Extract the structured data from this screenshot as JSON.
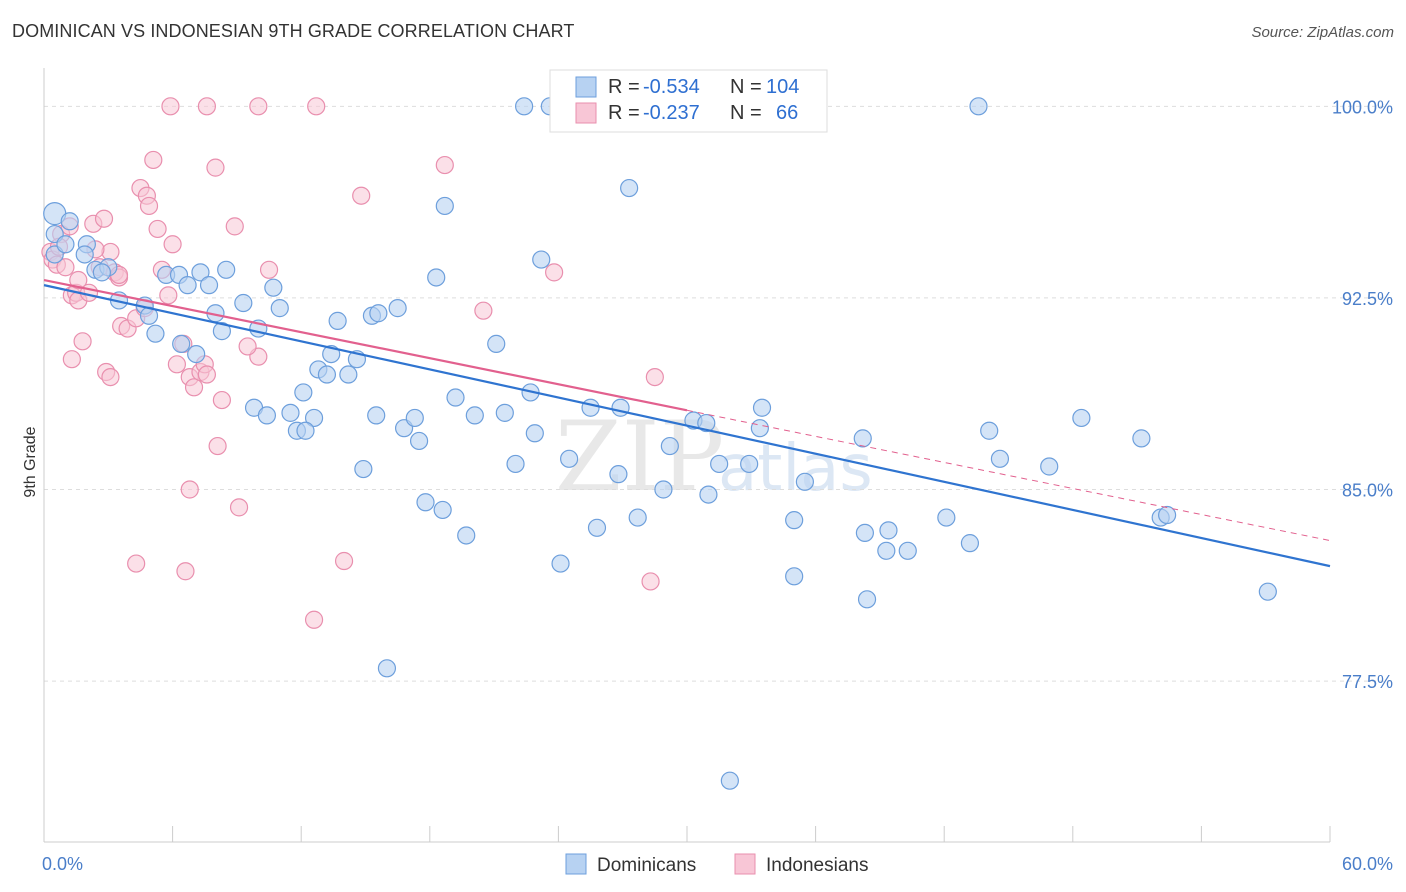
{
  "header": {
    "title": "DOMINICAN VS INDONESIAN 9TH GRADE CORRELATION CHART",
    "source": "Source: ZipAtlas.com"
  },
  "watermark": {
    "zip": "ZIP",
    "atlas": "atlas"
  },
  "colors": {
    "blue_fill": "#b7d2f2",
    "blue_stroke": "#6d9fdc",
    "blue_line": "#2f74d0",
    "pink_fill": "#f8c6d6",
    "pink_stroke": "#e98fae",
    "pink_line": "#e2608e",
    "grid": "#dddddd",
    "tick_label": "#4a7ec9"
  },
  "legend_top": {
    "rows": [
      {
        "r_label": "R =",
        "r_value": "-0.534",
        "n_label": "N =",
        "n_value": "104"
      },
      {
        "r_label": "R =",
        "r_value": "-0.237",
        "n_label": "N =",
        "n_value": "66"
      }
    ]
  },
  "legend_bottom": {
    "items": [
      {
        "label": "Dominicans"
      },
      {
        "label": "Indonesians"
      }
    ]
  },
  "chart_data": {
    "type": "scatter",
    "title": "DOMINICAN VS INDONESIAN 9TH GRADE CORRELATION CHART",
    "xlabel": "",
    "ylabel": "9th Grade",
    "xlim": [
      0,
      60
    ],
    "ylim": [
      71.2,
      101.5
    ],
    "x_tick_labels": [
      "0.0%",
      "60.0%"
    ],
    "y_ticks": [
      100.0,
      92.5,
      85.0,
      77.5
    ],
    "y_tick_labels": [
      "100.0%",
      "92.5%",
      "85.0%",
      "77.5%"
    ],
    "grid": true,
    "legend_position": "top-center",
    "series": [
      {
        "name": "Dominicans",
        "R": -0.534,
        "N": 104,
        "trend": {
          "x": [
            0,
            60
          ],
          "y": [
            93.0,
            82.0
          ]
        },
        "points": [
          [
            0.5,
            95.8
          ],
          [
            0.5,
            95.0
          ],
          [
            0.5,
            94.2
          ],
          [
            1.2,
            95.5
          ],
          [
            1.0,
            94.6
          ],
          [
            2.0,
            94.6
          ],
          [
            1.9,
            94.2
          ],
          [
            2.4,
            93.6
          ],
          [
            3.0,
            93.7
          ],
          [
            2.7,
            93.5
          ],
          [
            3.5,
            92.4
          ],
          [
            4.7,
            92.2
          ],
          [
            5.7,
            93.4
          ],
          [
            6.3,
            93.4
          ],
          [
            4.9,
            91.8
          ],
          [
            5.2,
            91.1
          ],
          [
            6.7,
            93.0
          ],
          [
            7.3,
            93.5
          ],
          [
            7.7,
            93.0
          ],
          [
            8.5,
            93.6
          ],
          [
            9.3,
            92.3
          ],
          [
            10.0,
            91.3
          ],
          [
            10.7,
            92.9
          ],
          [
            11.0,
            92.1
          ],
          [
            8.0,
            91.9
          ],
          [
            8.3,
            91.2
          ],
          [
            6.4,
            90.7
          ],
          [
            7.1,
            90.3
          ],
          [
            9.8,
            88.2
          ],
          [
            10.4,
            87.9
          ],
          [
            11.5,
            88.0
          ],
          [
            12.1,
            88.8
          ],
          [
            11.8,
            87.3
          ],
          [
            12.6,
            87.8
          ],
          [
            12.8,
            89.7
          ],
          [
            13.4,
            90.3
          ],
          [
            13.2,
            89.5
          ],
          [
            13.7,
            91.6
          ],
          [
            14.2,
            89.5
          ],
          [
            14.6,
            90.1
          ],
          [
            15.3,
            91.8
          ],
          [
            15.6,
            91.9
          ],
          [
            16.5,
            92.1
          ],
          [
            14.9,
            85.8
          ],
          [
            15.5,
            87.9
          ],
          [
            16.8,
            87.4
          ],
          [
            17.3,
            87.8
          ],
          [
            17.5,
            86.9
          ],
          [
            17.8,
            84.5
          ],
          [
            18.6,
            84.2
          ],
          [
            18.3,
            93.3
          ],
          [
            19.2,
            88.6
          ],
          [
            19.7,
            83.2
          ],
          [
            20.1,
            87.9
          ],
          [
            21.1,
            90.7
          ],
          [
            21.5,
            88.0
          ],
          [
            22.0,
            86.0
          ],
          [
            22.7,
            88.8
          ],
          [
            22.4,
            100.0
          ],
          [
            23.2,
            94.0
          ],
          [
            23.6,
            100.0
          ],
          [
            24.1,
            82.1
          ],
          [
            24.5,
            86.2
          ],
          [
            25.5,
            88.2
          ],
          [
            25.8,
            83.5
          ],
          [
            26.8,
            85.6
          ],
          [
            27.7,
            83.9
          ],
          [
            27.3,
            96.8
          ],
          [
            28.9,
            85.0
          ],
          [
            29.2,
            86.7
          ],
          [
            30.3,
            87.7
          ],
          [
            30.9,
            87.6
          ],
          [
            31.5,
            86.0
          ],
          [
            31.0,
            84.8
          ],
          [
            32.3,
            100.0
          ],
          [
            32.0,
            73.6
          ],
          [
            33.5,
            88.2
          ],
          [
            33.4,
            87.4
          ],
          [
            35.0,
            81.6
          ],
          [
            35.0,
            83.8
          ],
          [
            35.5,
            85.3
          ],
          [
            38.2,
            87.0
          ],
          [
            38.3,
            83.3
          ],
          [
            38.4,
            80.7
          ],
          [
            39.3,
            82.6
          ],
          [
            39.4,
            83.4
          ],
          [
            40.3,
            82.6
          ],
          [
            42.1,
            83.9
          ],
          [
            43.2,
            82.9
          ],
          [
            43.6,
            100.0
          ],
          [
            44.1,
            87.3
          ],
          [
            44.6,
            86.2
          ],
          [
            46.9,
            85.9
          ],
          [
            48.4,
            87.8
          ],
          [
            51.2,
            87.0
          ],
          [
            52.1,
            83.9
          ],
          [
            52.4,
            84.0
          ],
          [
            57.1,
            81.0
          ],
          [
            16.0,
            78.0
          ],
          [
            18.7,
            96.1
          ],
          [
            12.2,
            87.3
          ],
          [
            22.9,
            87.2
          ],
          [
            26.9,
            88.2
          ],
          [
            32.9,
            86.0
          ]
        ]
      },
      {
        "name": "Indonesians",
        "R": -0.237,
        "N": 66,
        "trend": {
          "x": [
            0,
            30
          ],
          "y": [
            93.2,
            88.1
          ]
        },
        "trend_dashed": {
          "x": [
            30,
            60
          ],
          "y": [
            88.1,
            83.0
          ]
        },
        "points": [
          [
            0.3,
            94.3
          ],
          [
            0.4,
            94.0
          ],
          [
            0.6,
            93.8
          ],
          [
            0.8,
            95.0
          ],
          [
            1.0,
            93.7
          ],
          [
            1.2,
            95.3
          ],
          [
            1.3,
            92.6
          ],
          [
            1.5,
            92.7
          ],
          [
            1.6,
            92.4
          ],
          [
            1.8,
            90.8
          ],
          [
            1.3,
            90.1
          ],
          [
            2.1,
            92.7
          ],
          [
            2.3,
            95.4
          ],
          [
            2.6,
            93.7
          ],
          [
            2.8,
            95.6
          ],
          [
            3.1,
            94.3
          ],
          [
            3.3,
            93.5
          ],
          [
            3.5,
            93.3
          ],
          [
            2.9,
            89.6
          ],
          [
            3.1,
            89.4
          ],
          [
            3.6,
            91.4
          ],
          [
            3.9,
            91.3
          ],
          [
            4.3,
            91.7
          ],
          [
            4.5,
            96.8
          ],
          [
            4.8,
            96.5
          ],
          [
            4.9,
            96.1
          ],
          [
            5.1,
            97.9
          ],
          [
            5.3,
            95.2
          ],
          [
            5.5,
            93.6
          ],
          [
            5.8,
            92.6
          ],
          [
            6.0,
            94.6
          ],
          [
            6.2,
            89.9
          ],
          [
            6.5,
            90.7
          ],
          [
            6.8,
            89.4
          ],
          [
            7.0,
            89.0
          ],
          [
            7.3,
            89.6
          ],
          [
            7.5,
            89.9
          ],
          [
            8.0,
            97.6
          ],
          [
            8.1,
            86.7
          ],
          [
            8.3,
            88.5
          ],
          [
            8.9,
            95.3
          ],
          [
            9.1,
            84.3
          ],
          [
            10.0,
            90.2
          ],
          [
            10.5,
            93.6
          ],
          [
            5.9,
            100.0
          ],
          [
            7.6,
            100.0
          ],
          [
            10.0,
            100.0
          ],
          [
            12.7,
            100.0
          ],
          [
            6.8,
            85.0
          ],
          [
            6.6,
            81.8
          ],
          [
            4.3,
            82.1
          ],
          [
            12.6,
            79.9
          ],
          [
            14.0,
            82.2
          ],
          [
            14.8,
            96.5
          ],
          [
            18.7,
            97.7
          ],
          [
            20.5,
            92.0
          ],
          [
            23.8,
            93.5
          ],
          [
            28.5,
            89.4
          ],
          [
            28.3,
            81.4
          ],
          [
            9.5,
            90.6
          ],
          [
            7.6,
            89.5
          ],
          [
            2.4,
            94.4
          ],
          [
            1.6,
            93.2
          ],
          [
            3.5,
            93.4
          ],
          [
            4.7,
            92.1
          ],
          [
            0.7,
            94.5
          ]
        ]
      }
    ]
  }
}
